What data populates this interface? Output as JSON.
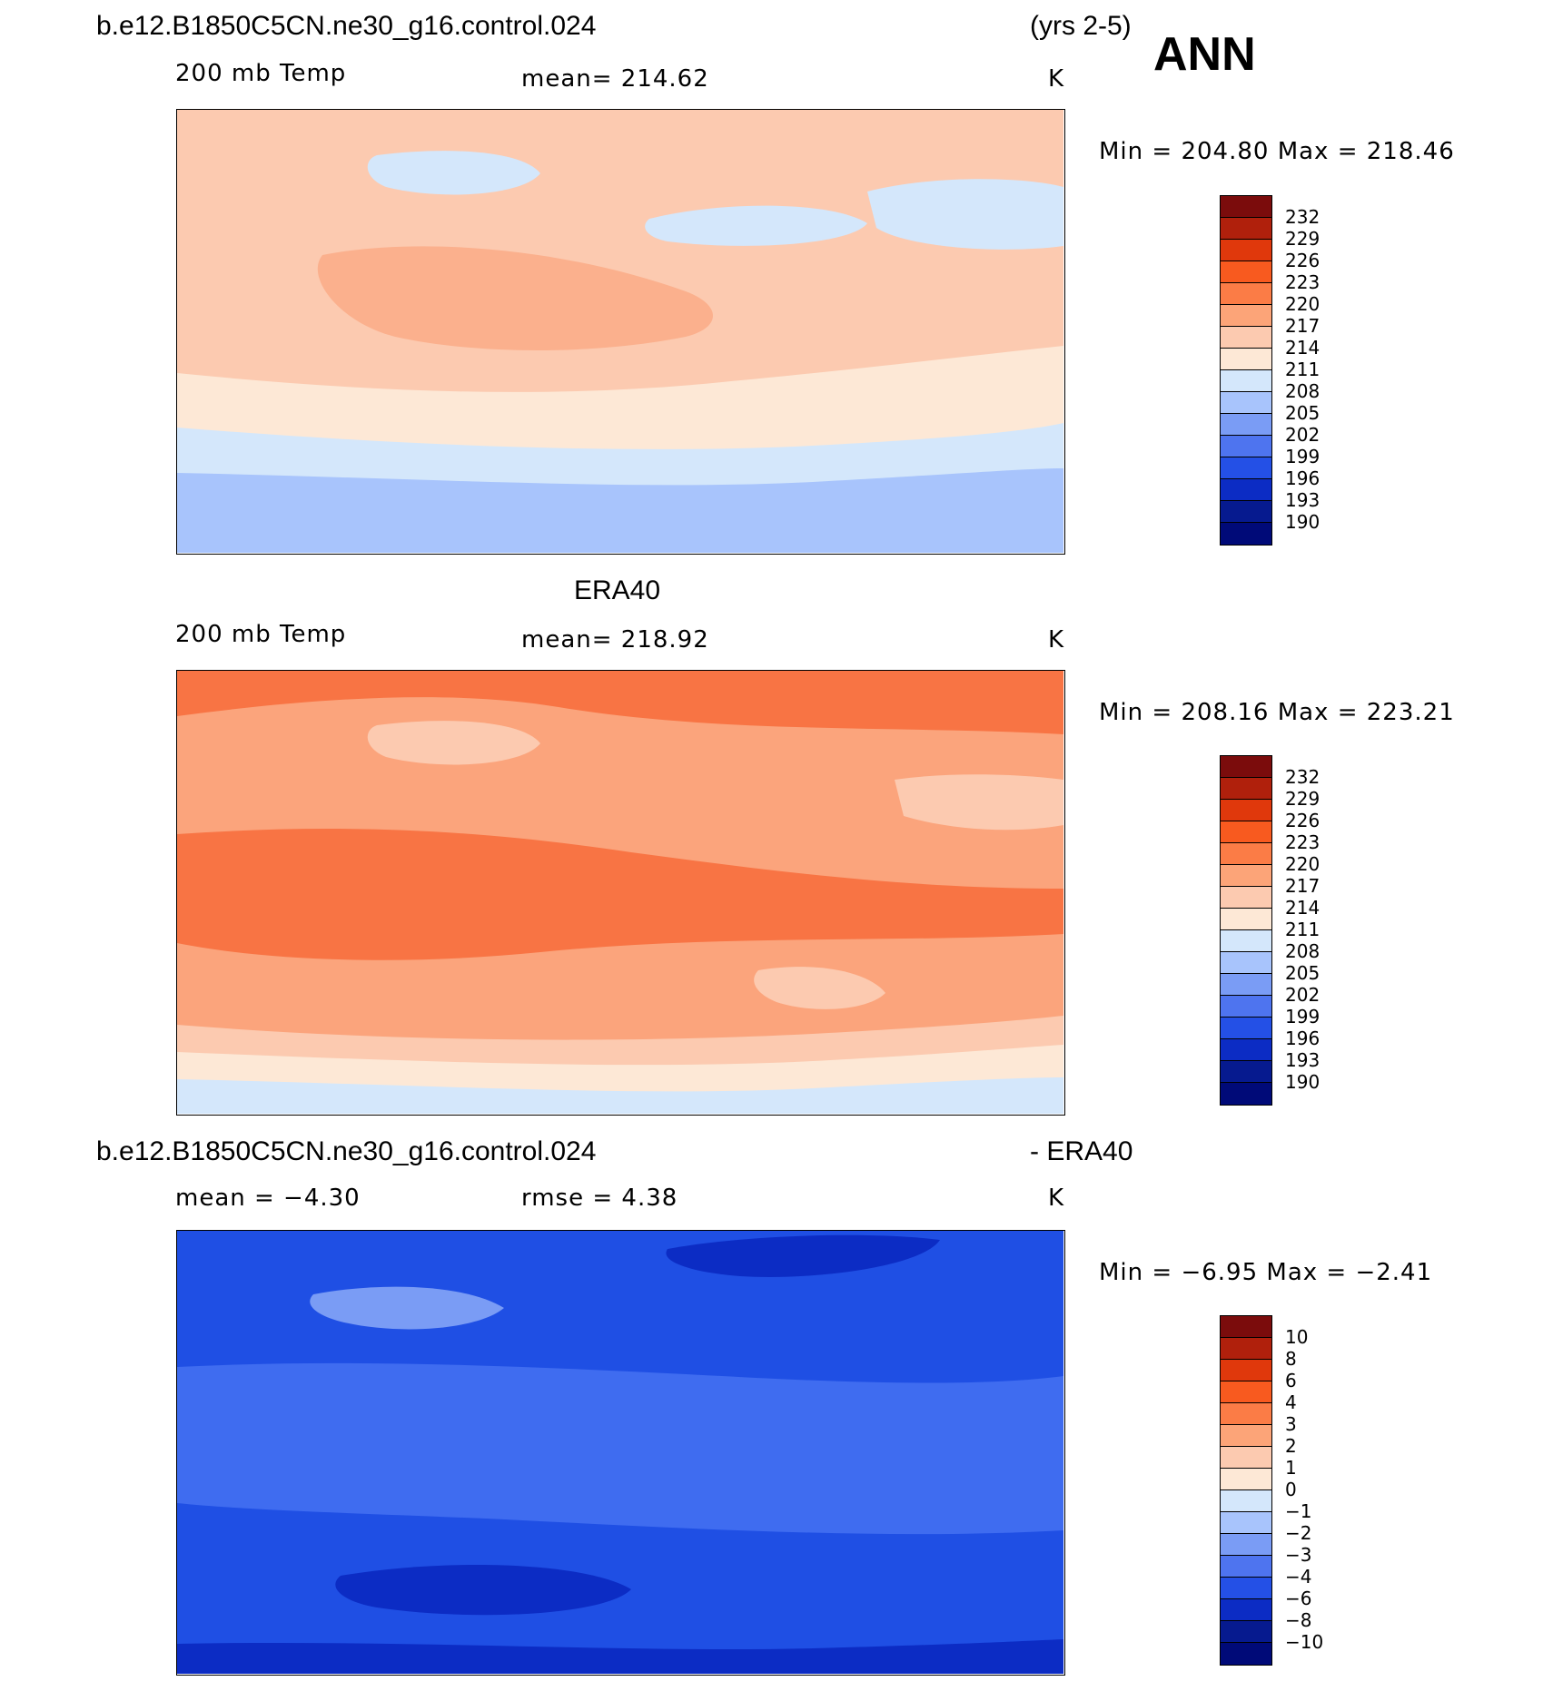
{
  "header": {
    "case_title": "b.e12.B1850C5CN.ne30_g16.control.024",
    "years": "(yrs 2-5)",
    "season": "ANN"
  },
  "panels": [
    {
      "id": "model",
      "variable": "200 mb Temp",
      "stat": "mean=  214.62",
      "units": "K",
      "minmax": "Min  =  204.80  Max  =  218.46",
      "colors": [
        "#a8c4fc",
        "#d4e7fb",
        "#fde8d6",
        "#fccab0",
        "#fbb08d"
      ],
      "colorbar": {
        "labels": [
          "232",
          "229",
          "226",
          "223",
          "220",
          "217",
          "214",
          "211",
          "208",
          "205",
          "202",
          "199",
          "196",
          "193",
          "190"
        ],
        "colors": [
          "#7b0c0c",
          "#b0200c",
          "#e0380c",
          "#f85a1f",
          "#fb7c46",
          "#fca478",
          "#fccab0",
          "#fde8d6",
          "#d4e7fb",
          "#a8c4fc",
          "#7a9cf5",
          "#4e74ef",
          "#2450e6",
          "#0c2cc4",
          "#061a8f",
          "#000a78"
        ]
      }
    },
    {
      "id": "obs",
      "title": "ERA40",
      "variable": "200 mb Temp",
      "stat": "mean=  218.92",
      "units": "K",
      "minmax": "Min  =  208.16  Max  =  223.21",
      "colors": [
        "#d4e7fb",
        "#fde8d6",
        "#fccab0",
        "#fba47c",
        "#f87444"
      ],
      "colorbar": {
        "labels": [
          "232",
          "229",
          "226",
          "223",
          "220",
          "217",
          "214",
          "211",
          "208",
          "205",
          "202",
          "199",
          "196",
          "193",
          "190"
        ],
        "colors": [
          "#7b0c0c",
          "#b0200c",
          "#e0380c",
          "#f85a1f",
          "#fb7c46",
          "#fca478",
          "#fccab0",
          "#fde8d6",
          "#d4e7fb",
          "#a8c4fc",
          "#7a9cf5",
          "#4e74ef",
          "#2450e6",
          "#0c2cc4",
          "#061a8f",
          "#000a78"
        ]
      }
    },
    {
      "id": "diff",
      "title_left": "b.e12.B1850C5CN.ne30_g16.control.024",
      "title_right": "- ERA40",
      "stat_mean": "mean =   −4.30",
      "stat_rmse": "rmse =    4.38",
      "units": "K",
      "minmax": "Min  =   −6.95  Max  =   −2.41",
      "colors": [
        "#7a9cf5",
        "#3f6cf0",
        "#1f4fe4",
        "#0c2cc4"
      ],
      "colorbar": {
        "labels": [
          "10",
          "8",
          "6",
          "4",
          "3",
          "2",
          "1",
          "0",
          "−1",
          "−2",
          "−3",
          "−4",
          "−6",
          "−8",
          "−10"
        ],
        "colors": [
          "#7b0c0c",
          "#b0200c",
          "#e0380c",
          "#f85a1f",
          "#fb7c46",
          "#fca478",
          "#fccab0",
          "#fde8d6",
          "#d4e7fb",
          "#a8c4fc",
          "#7a9cf5",
          "#4e74ef",
          "#2450e6",
          "#0c2cc4",
          "#061a8f",
          "#000a78"
        ]
      }
    }
  ]
}
